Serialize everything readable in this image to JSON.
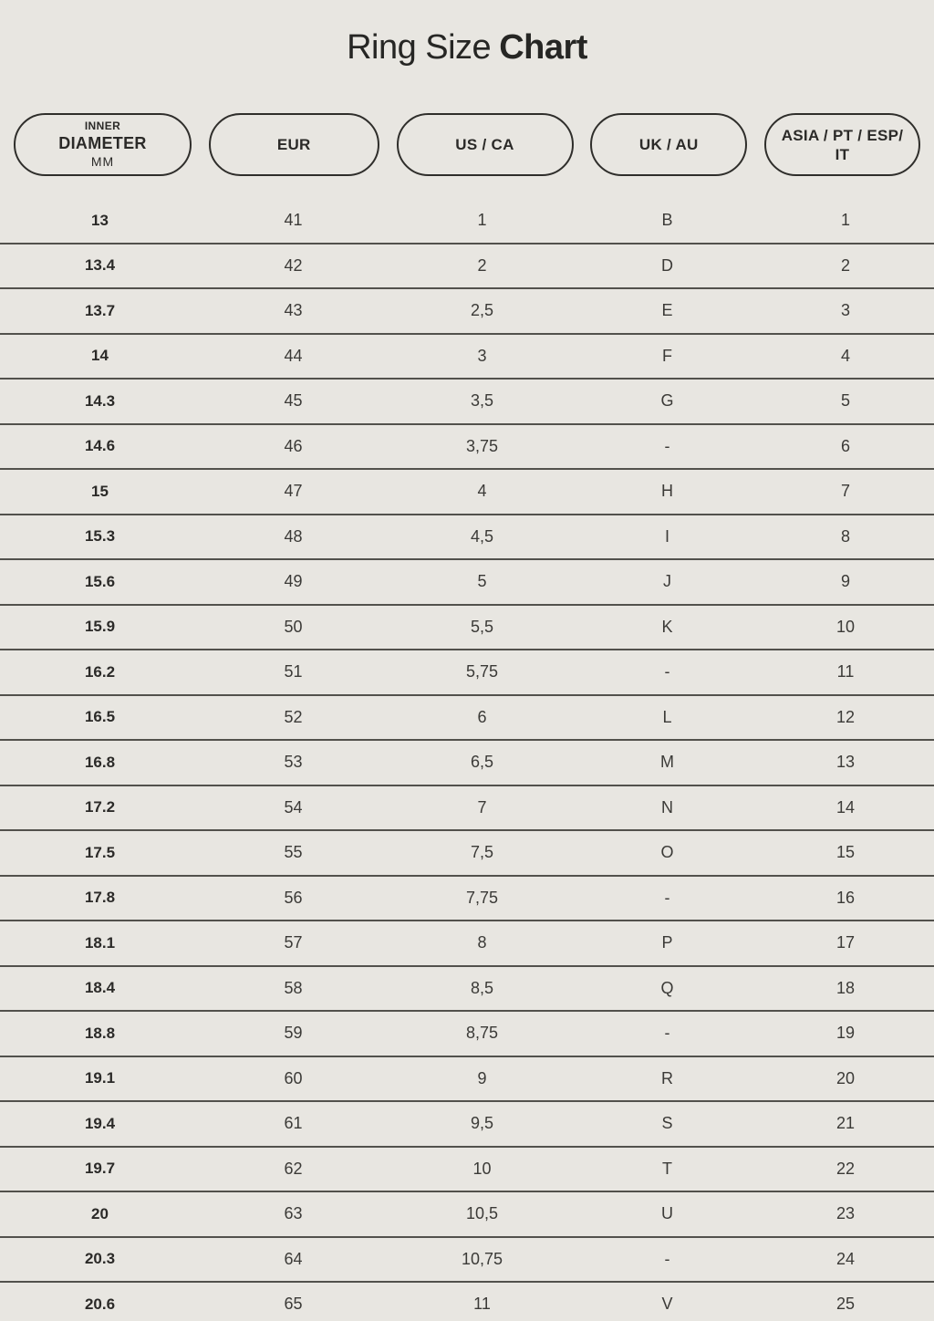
{
  "title": {
    "regular": "Ring Size",
    "bold": "Chart"
  },
  "header": {
    "inner_diameter": {
      "top": "INNER",
      "main": "DIAMETER",
      "sub": "MM"
    },
    "eur": "EUR",
    "us_ca": "US / CA",
    "uk_au": "UK / AU",
    "asia_line1": "ASIA / PT / ESP/",
    "asia_line2": "IT"
  },
  "colors": {
    "background": "#e8e6e1",
    "text": "#2b2a28",
    "divider": "#52514c",
    "pill_border": "#2f2e2b"
  },
  "chart_data": {
    "type": "table",
    "title": "Ring Size Chart",
    "columns": [
      "INNER DIAMETER MM",
      "EUR",
      "US / CA",
      "UK / AU",
      "ASIA / PT / ESP/ IT"
    ],
    "rows": [
      [
        "13",
        "41",
        "1",
        "B",
        "1"
      ],
      [
        "13.4",
        "42",
        "2",
        "D",
        "2"
      ],
      [
        "13.7",
        "43",
        "2,5",
        "E",
        "3"
      ],
      [
        "14",
        "44",
        "3",
        "F",
        "4"
      ],
      [
        "14.3",
        "45",
        "3,5",
        "G",
        "5"
      ],
      [
        "14.6",
        "46",
        "3,75",
        "-",
        "6"
      ],
      [
        "15",
        "47",
        "4",
        "H",
        "7"
      ],
      [
        "15.3",
        "48",
        "4,5",
        "I",
        "8"
      ],
      [
        "15.6",
        "49",
        "5",
        "J",
        "9"
      ],
      [
        "15.9",
        "50",
        "5,5",
        "K",
        "10"
      ],
      [
        "16.2",
        "51",
        "5,75",
        "-",
        "11"
      ],
      [
        "16.5",
        "52",
        "6",
        "L",
        "12"
      ],
      [
        "16.8",
        "53",
        "6,5",
        "M",
        "13"
      ],
      [
        "17.2",
        "54",
        "7",
        "N",
        "14"
      ],
      [
        "17.5",
        "55",
        "7,5",
        "O",
        "15"
      ],
      [
        "17.8",
        "56",
        "7,75",
        "-",
        "16"
      ],
      [
        "18.1",
        "57",
        "8",
        "P",
        "17"
      ],
      [
        "18.4",
        "58",
        "8,5",
        "Q",
        "18"
      ],
      [
        "18.8",
        "59",
        "8,75",
        "-",
        "19"
      ],
      [
        "19.1",
        "60",
        "9",
        "R",
        "20"
      ],
      [
        "19.4",
        "61",
        "9,5",
        "S",
        "21"
      ],
      [
        "19.7",
        "62",
        "10",
        "T",
        "22"
      ],
      [
        "20",
        "63",
        "10,5",
        "U",
        "23"
      ],
      [
        "20.3",
        "64",
        "10,75",
        "-",
        "24"
      ],
      [
        "20.6",
        "65",
        "11",
        "V",
        "25"
      ]
    ]
  }
}
